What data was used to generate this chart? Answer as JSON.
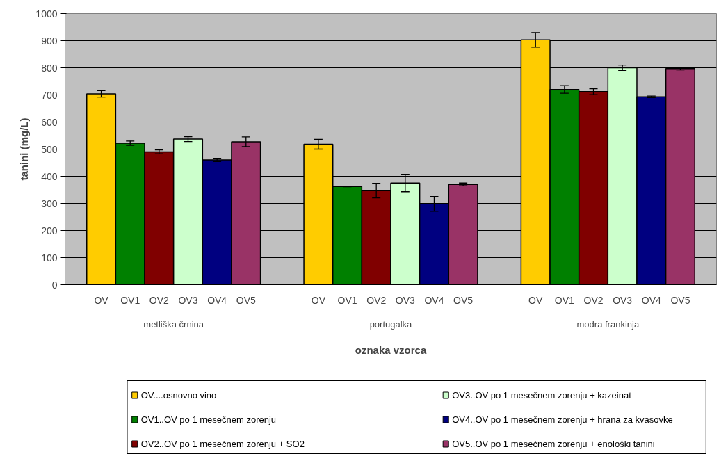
{
  "chart_data": {
    "type": "bar",
    "xlabel": "oznaka vzorca",
    "ylabel": "tanini (mg/L)",
    "categories": [
      "metliška črnina",
      "portugalka",
      "modra frankinja"
    ],
    "series": [
      {
        "name": "OV....osnovno vino",
        "color": "#ffcc00",
        "values": [
          704,
          518,
          903
        ],
        "errors": [
          12,
          18,
          27
        ]
      },
      {
        "name": "OV1..OV po 1 mesečnem zorenju",
        "color": "#008000",
        "values": [
          522,
          362,
          720
        ],
        "errors": [
          8,
          1,
          14
        ]
      },
      {
        "name": "OV2..OV po 1 mesečnem zorenju + SO2",
        "color": "#800000",
        "values": [
          490,
          347,
          712
        ],
        "errors": [
          7,
          27,
          11
        ]
      },
      {
        "name": "OV3..OV po 1 mesečnem zorenju + kazeinat",
        "color": "#ccffcc",
        "values": [
          537,
          375,
          800
        ],
        "errors": [
          9,
          32,
          10
        ]
      },
      {
        "name": "OV4..OV po 1 mesečnem zorenju + hrana za kvasovke",
        "color": "#000080",
        "values": [
          460,
          298,
          693
        ],
        "errors": [
          6,
          27,
          3
        ]
      },
      {
        "name": "OV5..OV po 1 mesečnem zorenju + enološki tanini",
        "color": "#993366",
        "values": [
          527,
          370,
          797
        ],
        "errors": [
          18,
          5,
          5
        ]
      }
    ],
    "annotations": [
      "OV",
      "OV1",
      "OV2",
      "OV3",
      "OV4",
      "OV5",
      "OV",
      "OV1",
      "OV2",
      "OV3",
      "OV4",
      "OV5",
      "OV",
      "OV1",
      "OV2",
      "OV3",
      "OV4",
      "OV5"
    ],
    "ylim": [
      0,
      1000
    ],
    "yticks": [
      0,
      100,
      200,
      300,
      400,
      500,
      600,
      700,
      800,
      900,
      1000
    ],
    "grid": "y",
    "legend": "bottom"
  }
}
